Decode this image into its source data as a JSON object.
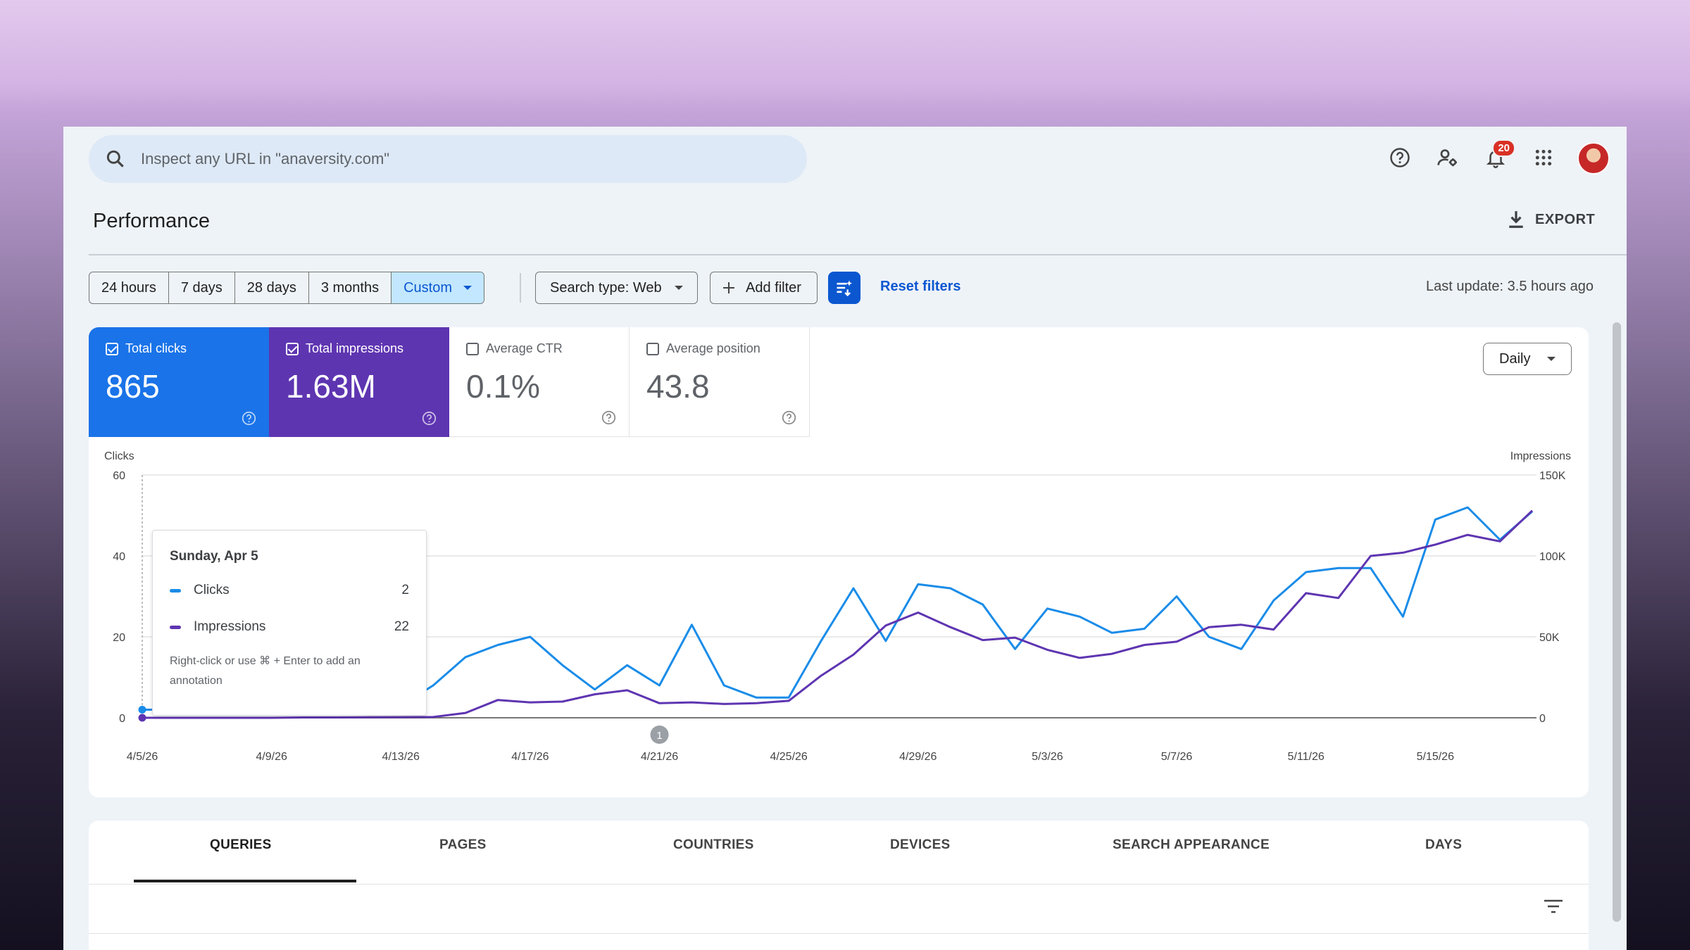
{
  "search": {
    "placeholder": "Inspect any URL in \"anaversity.com\""
  },
  "header": {
    "notifications_count": "20"
  },
  "page": {
    "title": "Performance",
    "export_label": "EXPORT"
  },
  "filters": {
    "ranges": [
      "24 hours",
      "7 days",
      "28 days",
      "3 months",
      "Custom"
    ],
    "search_type": "Search type: Web",
    "add_filter": "Add filter",
    "reset": "Reset filters",
    "last_update": "Last update: 3.5 hours ago"
  },
  "metrics": [
    {
      "label": "Total clicks",
      "value": "865",
      "checked": true,
      "color": "#1a73e8"
    },
    {
      "label": "Total impressions",
      "value": "1.63M",
      "checked": true,
      "color": "#5e35b1"
    },
    {
      "label": "Average CTR",
      "value": "0.1%",
      "checked": false
    },
    {
      "label": "Average position",
      "value": "43.8",
      "checked": false
    }
  ],
  "granularity": "Daily",
  "tooltip": {
    "date": "Sunday, Apr 5",
    "clicks_label": "Clicks",
    "clicks_value": "2",
    "impressions_label": "Impressions",
    "impressions_value": "22",
    "note": "Right-click or use ⌘ + Enter to add an annotation"
  },
  "chart_data": {
    "type": "line",
    "ylabel": "Clicks",
    "y2label": "Impressions",
    "ylim": [
      0,
      60
    ],
    "y2lim": [
      0,
      150000
    ],
    "yticks": [
      "0",
      "20",
      "40",
      "60"
    ],
    "y2ticks": [
      "0",
      "50K",
      "100K",
      "150K"
    ],
    "xticks": [
      "4/5/26",
      "4/9/26",
      "4/13/26",
      "4/17/26",
      "4/21/26",
      "4/25/26",
      "4/29/26",
      "5/3/26",
      "5/7/26",
      "5/11/26",
      "5/15/26"
    ],
    "annotation": {
      "label": "1",
      "date": "4/21/26"
    },
    "series": [
      {
        "name": "Clicks",
        "color": "#1a8ce8",
        "values": [
          2,
          2,
          3,
          1,
          2,
          3,
          2,
          1,
          3,
          8,
          15,
          18,
          20,
          13,
          7,
          13,
          8,
          23,
          8,
          5,
          5,
          19,
          32,
          19,
          33,
          32,
          28,
          17,
          27,
          25,
          21,
          22,
          30,
          20,
          17,
          29,
          36,
          37,
          37,
          25,
          49,
          52,
          44,
          51
        ]
      },
      {
        "name": "Impressions",
        "color": "#5e35b1",
        "values": [
          0,
          0,
          0,
          0,
          0,
          200,
          200,
          300,
          400,
          500,
          3000,
          11000,
          9500,
          10000,
          14500,
          17000,
          9000,
          9500,
          8500,
          9000,
          10500,
          26000,
          39000,
          57000,
          65000,
          56000,
          48000,
          49500,
          42000,
          37000,
          39500,
          45000,
          47000,
          56000,
          57500,
          54500,
          77000,
          74000,
          100000,
          102000,
          107000,
          113000,
          109000,
          128000
        ]
      }
    ]
  },
  "tabs": [
    "QUERIES",
    "PAGES",
    "COUNTRIES",
    "DEVICES",
    "SEARCH APPEARANCE",
    "DAYS"
  ]
}
